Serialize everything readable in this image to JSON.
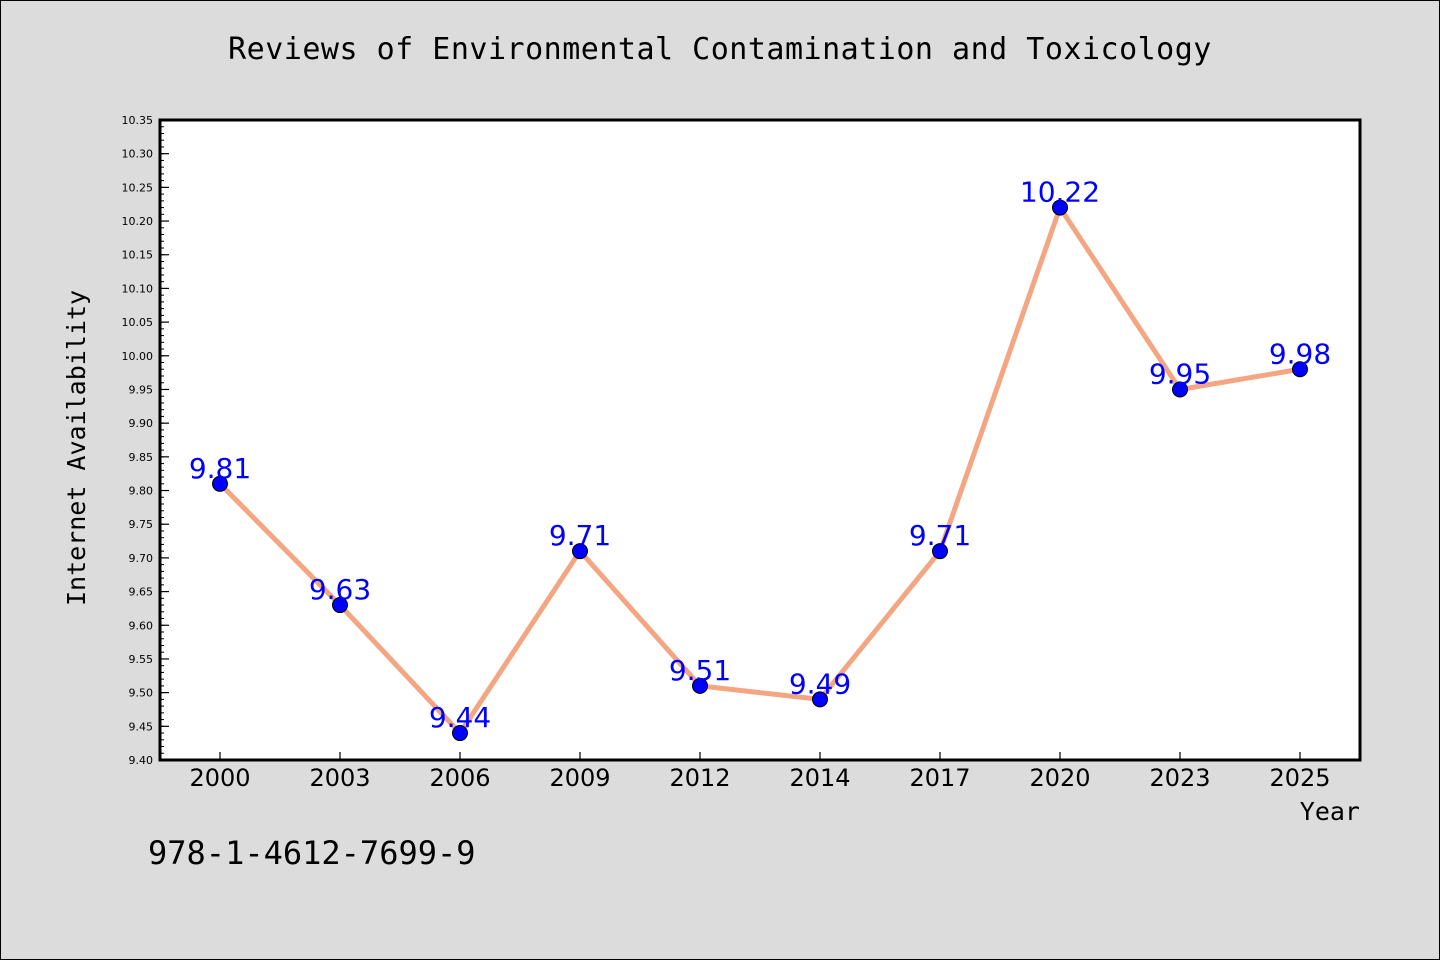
{
  "chart_data": {
    "type": "line",
    "title": "Reviews of Environmental Contamination and Toxicology",
    "xlabel": "Year",
    "ylabel": "Internet Availability",
    "categories": [
      "2000",
      "2003",
      "2006",
      "2009",
      "2012",
      "2014",
      "2017",
      "2020",
      "2023",
      "2025"
    ],
    "series": [
      {
        "values": [
          9.81,
          9.63,
          9.44,
          9.71,
          9.51,
          9.49,
          9.71,
          10.22,
          9.95,
          9.98
        ]
      }
    ],
    "data_labels": [
      "9.81",
      "9.63",
      "9.44",
      "9.71",
      "9.51",
      "9.49",
      "9.71",
      "10.22",
      "9.95",
      "9.98"
    ],
    "ylim": [
      9.4,
      10.35
    ],
    "yticks": [
      "9.40",
      "9.45",
      "9.50",
      "9.55",
      "9.60",
      "9.65",
      "9.70",
      "9.75",
      "9.80",
      "9.85",
      "9.90",
      "9.95",
      "10.00",
      "10.05",
      "10.10",
      "10.15",
      "10.20",
      "10.25",
      "10.30",
      "10.35"
    ],
    "grid": false,
    "colors": {
      "line": "#f4a582",
      "marker": "#0000ff",
      "data_label": "#0000ff",
      "background": "#dcdcdc",
      "plot_background": "#ffffff"
    }
  },
  "footer": {
    "code": "978-1-4612-7699-9"
  }
}
